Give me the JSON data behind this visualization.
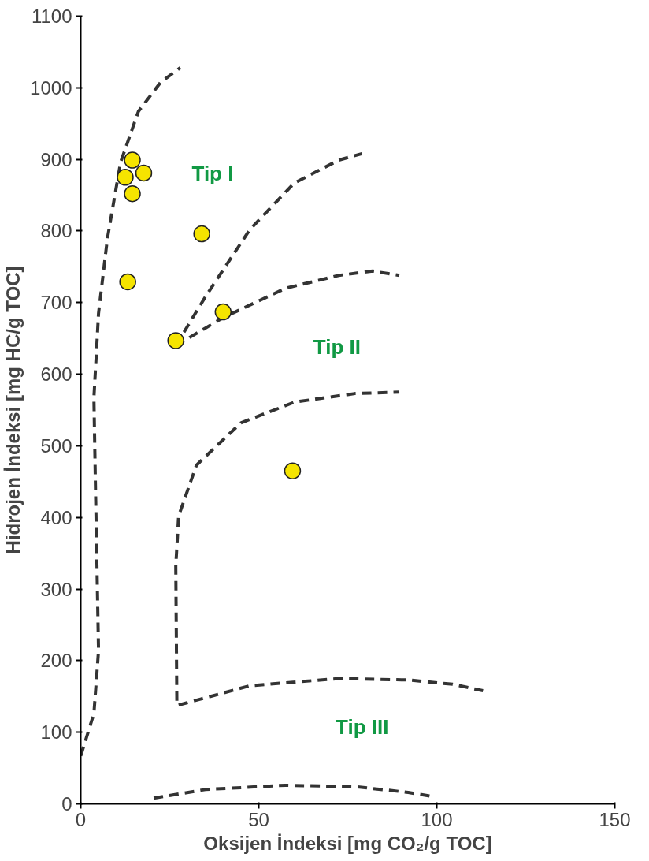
{
  "chart_data": {
    "type": "scatter",
    "xlabel": "Oksijen İndeksi [mg CO₂/g TOC]",
    "ylabel": "Hidrojen İndeksi [mg HC/g TOC]",
    "xlim": [
      0,
      150
    ],
    "ylim": [
      0,
      1100
    ],
    "xticks": [
      0,
      50,
      100,
      150
    ],
    "yticks": [
      0,
      100,
      200,
      300,
      400,
      500,
      600,
      700,
      800,
      900,
      1000,
      1100
    ],
    "grid": false,
    "series": [
      {
        "marker": "circle",
        "color": "#f5e400",
        "x": [
          12.5,
          14.5,
          17.7,
          14.5,
          34,
          13.2,
          40,
          26.7,
          59.5
        ],
        "values": [
          875,
          899,
          881,
          852,
          796,
          729,
          687,
          647,
          465
        ]
      },
      {
        "type": "line",
        "line_style": "dashed",
        "color": "#333333",
        "x": [
          0,
          3.7,
          5,
          4.2,
          3.7,
          5,
          7.5,
          11.2,
          16.2,
          22.5,
          28
        ],
        "values": [
          67,
          126,
          214,
          426,
          567,
          685,
          790,
          896,
          967,
          1008,
          1028
        ]
      },
      {
        "type": "line",
        "line_style": "dashed",
        "color": "#333333",
        "x": [
          26.7,
          35,
          47.5,
          60,
          72.5,
          79
        ],
        "values": [
          640,
          708,
          802,
          867,
          899,
          908
        ]
      },
      {
        "type": "line",
        "line_style": "dashed",
        "color": "#333333",
        "x": [
          26.7,
          40,
          57.5,
          72.5,
          82,
          89.5
        ],
        "values": [
          640,
          679,
          720,
          738,
          744,
          738
        ]
      },
      {
        "type": "line",
        "line_style": "dashed",
        "color": "#333333",
        "x": [
          27,
          26.7,
          27.5,
          32.5,
          45,
          60,
          77,
          89.5
        ],
        "values": [
          144,
          332,
          402,
          473,
          532,
          561,
          573,
          575
        ]
      },
      {
        "type": "line",
        "line_style": "dashed",
        "color": "#333333",
        "x": [
          27.5,
          47.5,
          72.5,
          92,
          104.5,
          113
        ],
        "values": [
          138,
          165,
          175,
          173,
          167,
          158
        ]
      },
      {
        "type": "line",
        "line_style": "dashed",
        "color": "#333333",
        "x": [
          20.5,
          35,
          57.5,
          77,
          92,
          98
        ],
        "values": [
          8,
          20,
          26,
          24,
          16,
          11
        ]
      }
    ],
    "annotations": [
      "Tip I",
      "Tip II",
      "Tip III"
    ]
  }
}
